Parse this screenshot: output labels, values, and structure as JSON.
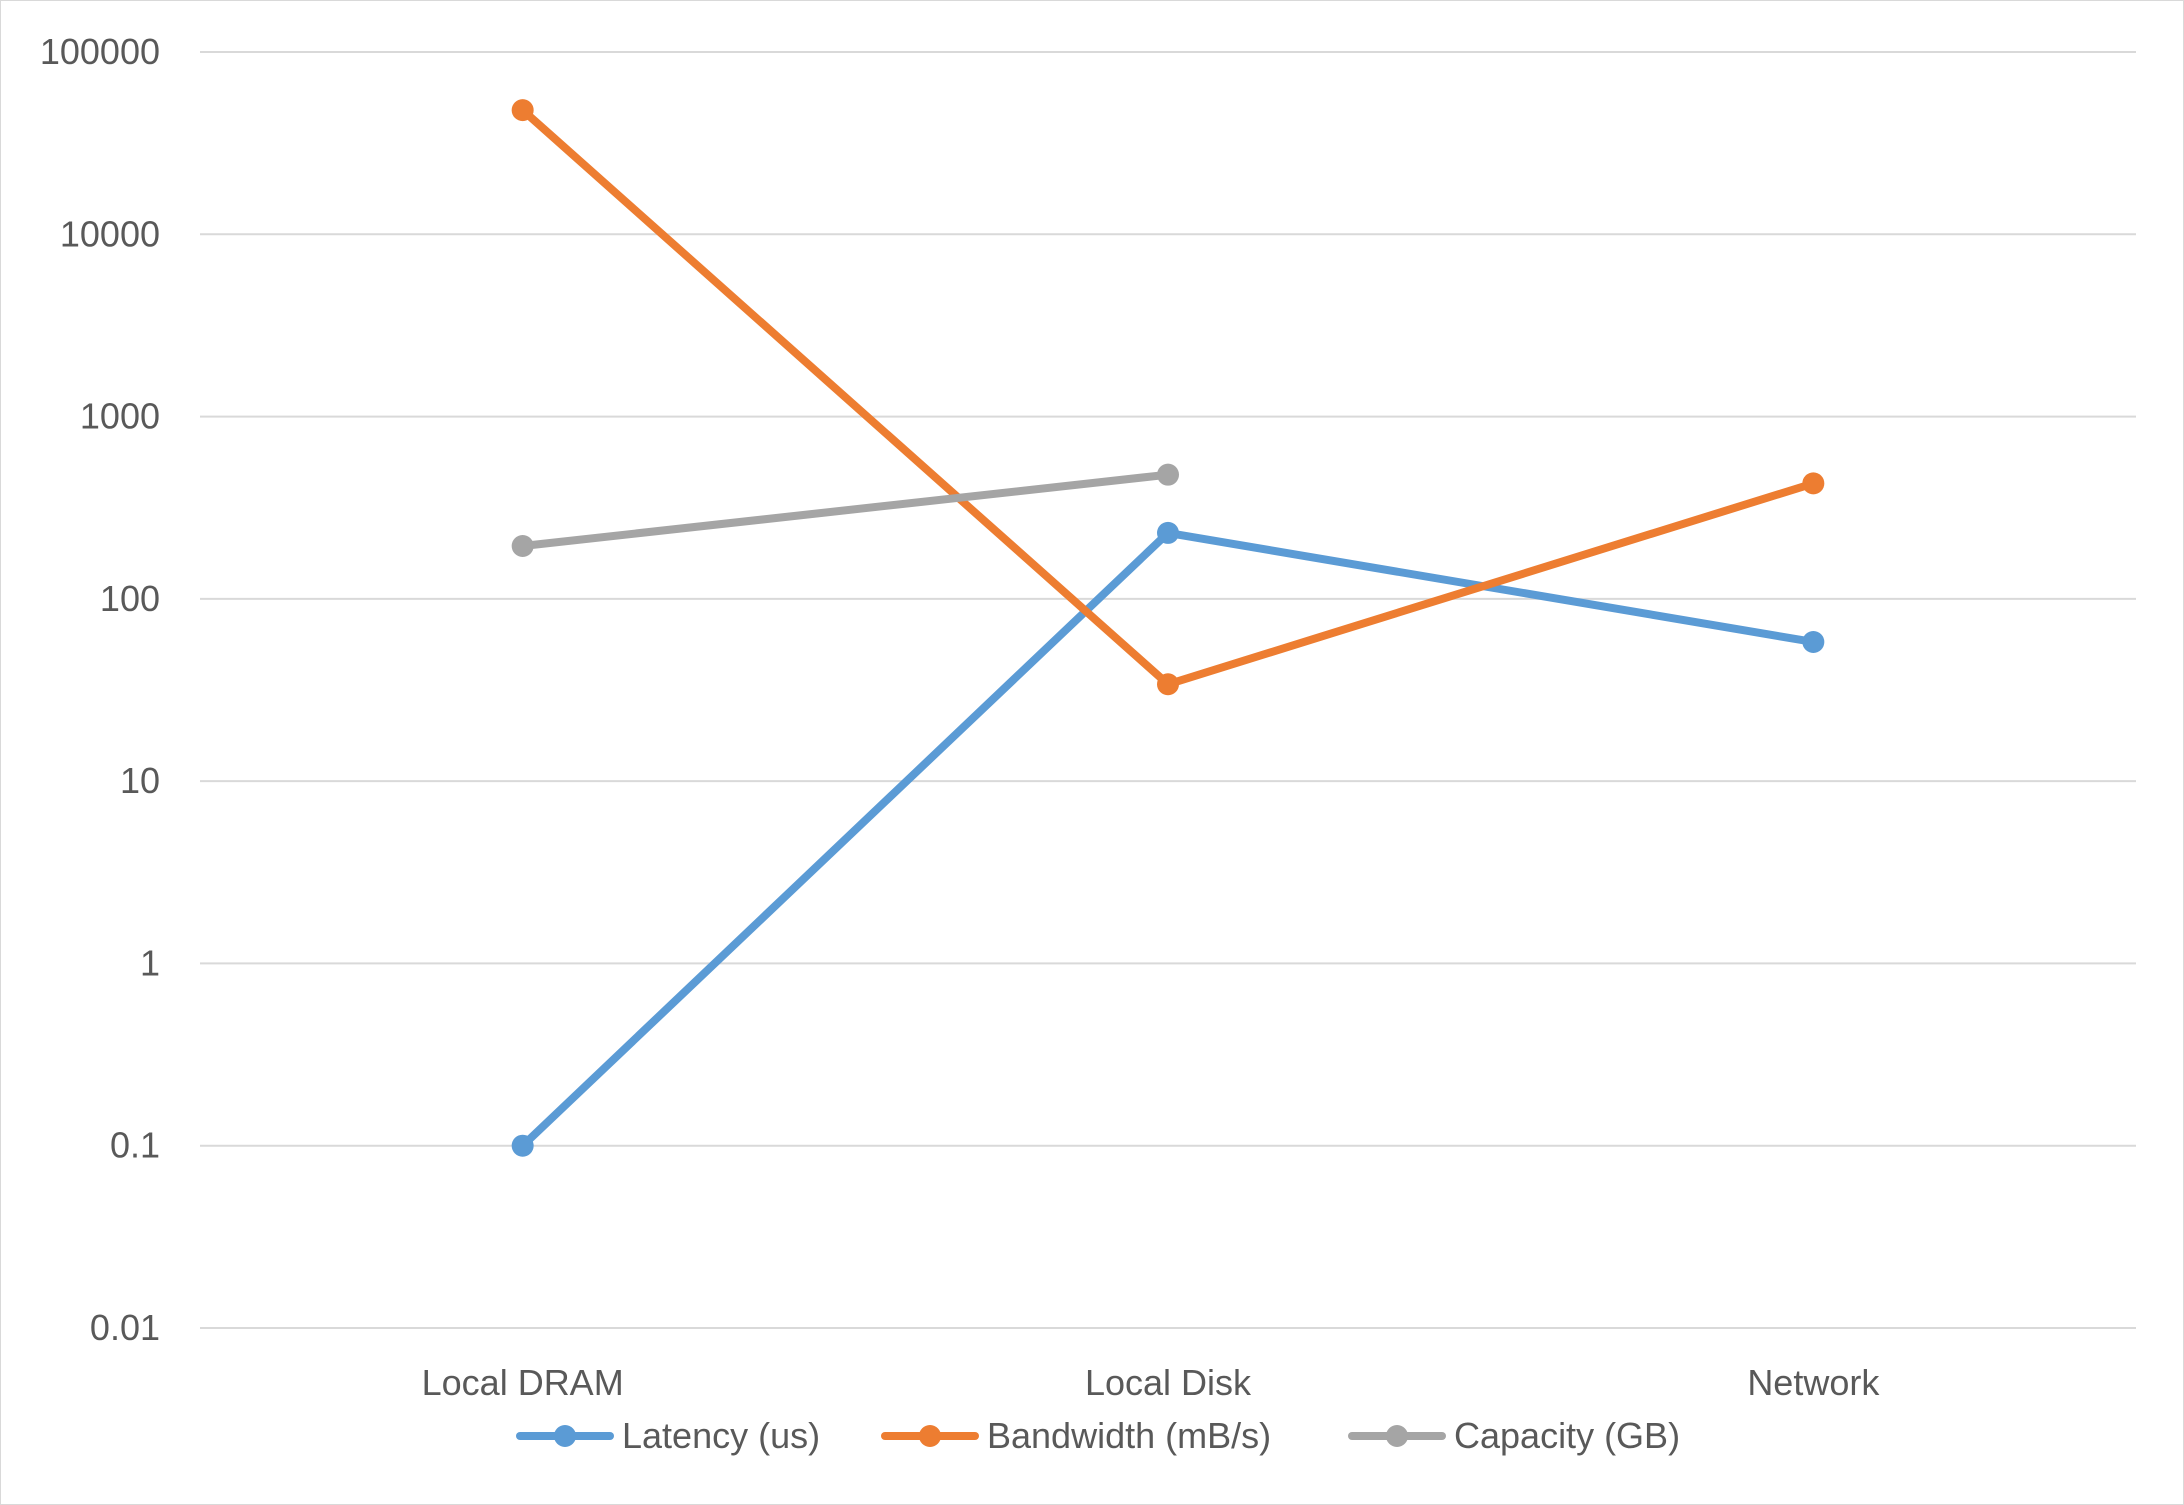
{
  "chart_data": {
    "type": "line",
    "title": "",
    "xlabel": "",
    "ylabel": "",
    "y_scale": "log",
    "ylim": [
      0.01,
      100000
    ],
    "y_ticks": [
      "0.01",
      "0.1",
      "1",
      "10",
      "100",
      "1000",
      "10000",
      "100000"
    ],
    "categories": [
      "Local DRAM",
      "Local Disk",
      "Network"
    ],
    "grid": "horizontal",
    "legend_position": "bottom",
    "series": [
      {
        "name": "Latency (us)",
        "color": "#5B9BD5",
        "values": [
          0.1,
          230,
          58
        ]
      },
      {
        "name": "Bandwidth (mB/s)",
        "color": "#ED7D31",
        "values": [
          48000,
          34,
          430
        ]
      },
      {
        "name": "Capacity (GB)",
        "color": "#A5A5A5",
        "values": [
          195,
          480,
          null
        ]
      }
    ]
  }
}
